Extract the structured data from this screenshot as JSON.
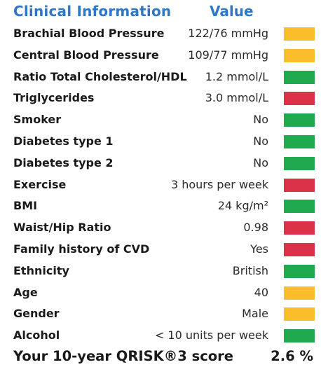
{
  "header": {
    "label_title": "Clinical Information",
    "value_title": "Value"
  },
  "status_colors": {
    "amber": "#fbbd2c",
    "green": "#21a94f",
    "red": "#db3249"
  },
  "rows": [
    {
      "label": "Brachial Blood Pressure",
      "value": "122/76 mmHg",
      "status": "amber"
    },
    {
      "label": "Central Blood Pressure",
      "value": "109/77 mmHg",
      "status": "amber"
    },
    {
      "label": "Ratio Total Cholesterol/HDL",
      "value": "1.2 mmol/L",
      "status": "green"
    },
    {
      "label": "Triglycerides",
      "value": "3.0 mmol/L",
      "status": "red"
    },
    {
      "label": "Smoker",
      "value": "No",
      "status": "green"
    },
    {
      "label": "Diabetes type 1",
      "value": "No",
      "status": "green"
    },
    {
      "label": "Diabetes type 2",
      "value": "No",
      "status": "green"
    },
    {
      "label": "Exercise",
      "value": "3 hours per week",
      "status": "red"
    },
    {
      "label": "BMI",
      "value": "24 kg/m²",
      "status": "green"
    },
    {
      "label": "Waist/Hip Ratio",
      "value": "0.98",
      "status": "red"
    },
    {
      "label": "Family history of CVD",
      "value": "Yes",
      "status": "red"
    },
    {
      "label": "Ethnicity",
      "value": "British",
      "status": "green"
    },
    {
      "label": "Age",
      "value": "40",
      "status": "amber"
    },
    {
      "label": "Gender",
      "value": "Male",
      "status": "amber"
    },
    {
      "label": "Alcohol",
      "value": "< 10 units per week",
      "status": "green"
    }
  ],
  "score": {
    "label": "Your 10-year QRISK®3 score",
    "value": "2.6 %"
  }
}
